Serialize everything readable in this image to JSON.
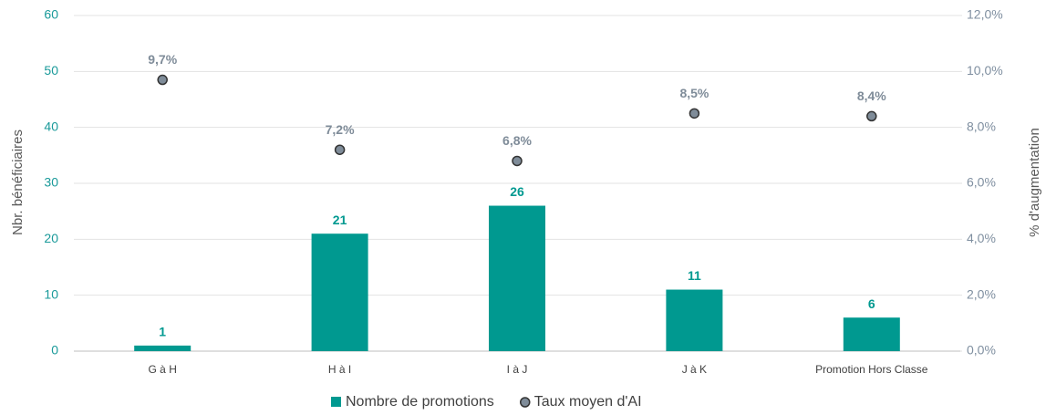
{
  "chart_data": {
    "type": "bar",
    "ylabel": "Nbr. bénéficiaires",
    "y2label": "% d'augmentation",
    "categories": [
      "G à H",
      "H à I",
      "I à J",
      "J à K",
      "Promotion Hors Classe"
    ],
    "series": [
      {
        "name": "Nombre de promotions",
        "type": "bar",
        "color": "#009990",
        "values": [
          1,
          21,
          26,
          11,
          6
        ]
      },
      {
        "name": "Taux moyen d'AI",
        "type": "scatter",
        "axis": "y2",
        "color": "#7f8c99",
        "values": [
          9.7,
          7.2,
          6.8,
          8.5,
          8.4
        ],
        "value_labels": [
          "9,7%",
          "7,2%",
          "6,8%",
          "8,5%",
          "8,4%"
        ]
      }
    ],
    "ylim": [
      0,
      60
    ],
    "yticks": [
      0,
      10,
      20,
      30,
      40,
      50,
      60
    ],
    "y2lim": [
      0,
      12
    ],
    "y2ticks": [
      {
        "value": 0,
        "label": "0,0%"
      },
      {
        "value": 2,
        "label": "2,0%"
      },
      {
        "value": 4,
        "label": "4,0%"
      },
      {
        "value": 6,
        "label": "6,0%"
      },
      {
        "value": 8,
        "label": "8,0%"
      },
      {
        "value": 10,
        "label": "10,0%"
      },
      {
        "value": 12,
        "label": "12,0%"
      }
    ],
    "grid": true,
    "legend": "bottom"
  }
}
